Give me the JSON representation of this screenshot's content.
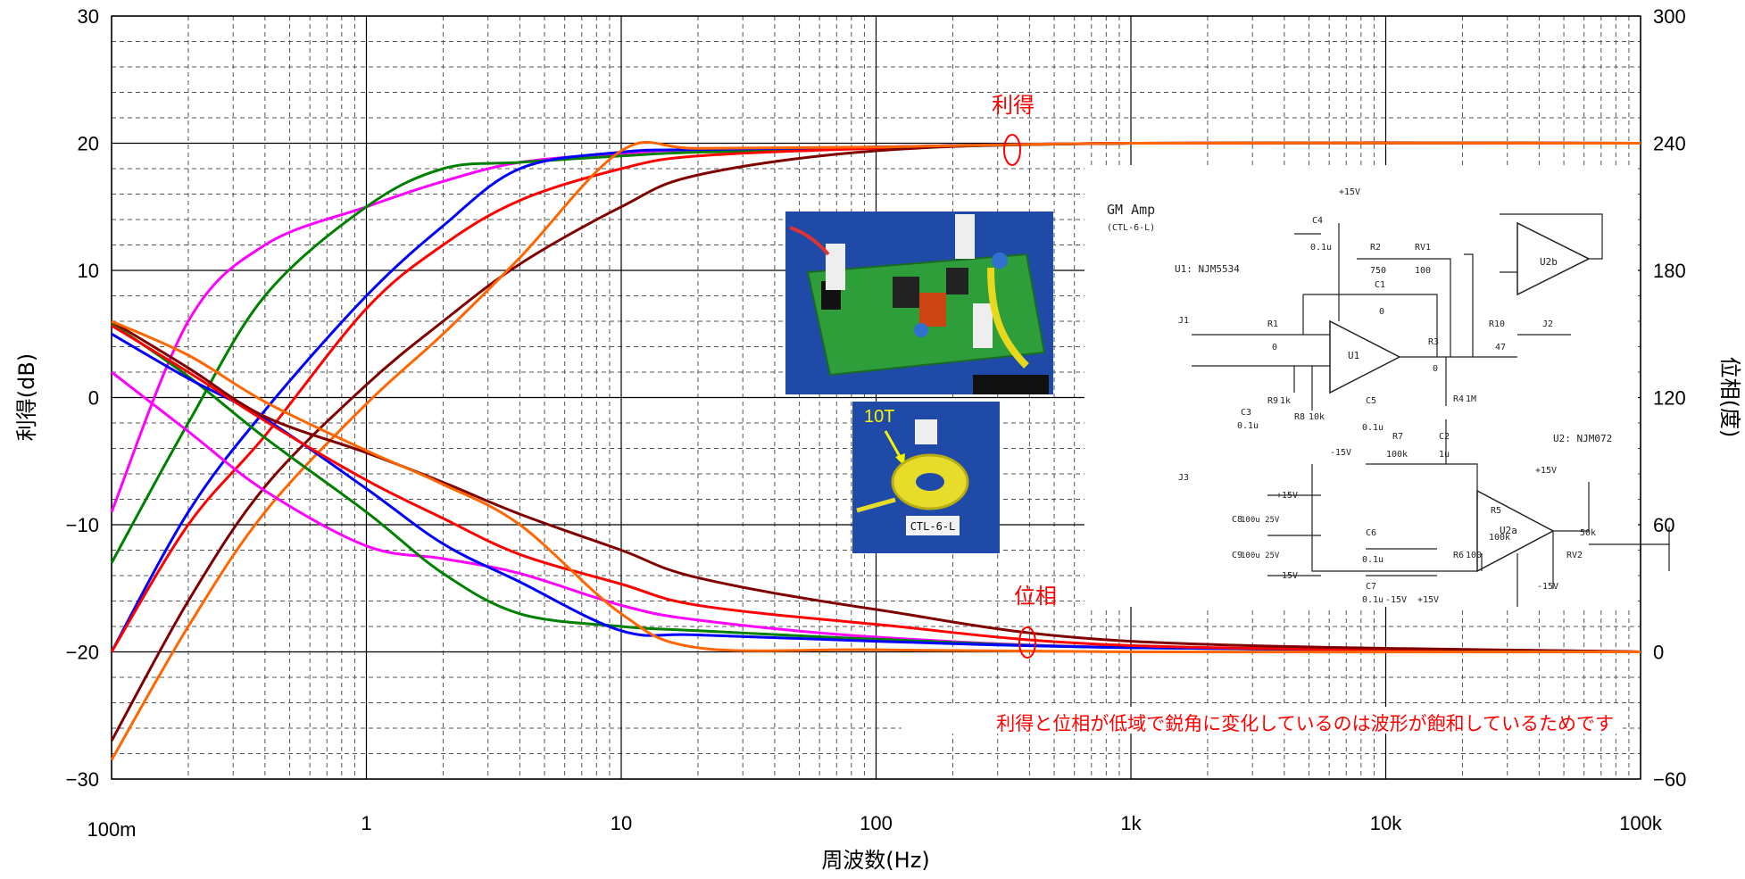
{
  "chart_data": {
    "type": "line",
    "xlabel": "周波数(Hz)",
    "ylabel_left": "利得(dB)",
    "ylabel_right": "位相(度)",
    "x_scale": "log",
    "xlim": [
      0.1,
      100000
    ],
    "ylim_left": [
      -30,
      30
    ],
    "ylim_right": [
      -60,
      300
    ],
    "grid": true,
    "x_tick_labels": [
      "100m",
      "1",
      "10",
      "100",
      "1k",
      "10k",
      "100k"
    ],
    "x_tick_values": [
      0.1,
      1,
      10,
      100,
      1000,
      10000,
      100000
    ],
    "y_left_ticks": [
      -30,
      -20,
      -10,
      0,
      10,
      20,
      30
    ],
    "y_right_ticks": [
      -60,
      0,
      60,
      120,
      180,
      240,
      300
    ],
    "annotations": {
      "gain": "利得",
      "phase": "位相",
      "note": "利得と位相が低域で鋭角に変化しているのは波形が飽和しているためです"
    },
    "x_points": [
      0.1,
      0.2,
      0.4,
      1,
      2,
      4,
      10,
      20,
      100,
      1000,
      100000
    ],
    "gain_series": [
      {
        "color": "#ff00ff",
        "values": [
          -9,
          6,
          12,
          15,
          17,
          18.5,
          19.2,
          19.5,
          19.7,
          20,
          20
        ]
      },
      {
        "color": "#008000",
        "values": [
          -13,
          -2,
          8,
          15,
          18,
          18.5,
          19,
          19.3,
          19.6,
          20,
          20
        ]
      },
      {
        "color": "#0000ff",
        "values": [
          -20,
          -9,
          -1,
          8,
          13.5,
          18,
          19.3,
          19.5,
          19.7,
          20,
          20
        ]
      },
      {
        "color": "#ff0000",
        "values": [
          -20,
          -10,
          -3,
          7,
          12,
          15.5,
          18,
          19,
          19.6,
          20,
          20
        ]
      },
      {
        "color": "#800000",
        "values": [
          -27,
          -16,
          -7,
          1,
          6,
          10.5,
          15,
          17.5,
          19.4,
          20,
          20
        ]
      },
      {
        "color": "#ff6600",
        "values": [
          -28.5,
          -18,
          -9,
          -0.5,
          5,
          11,
          19.4,
          19.6,
          19.7,
          20,
          20
        ]
      }
    ],
    "phase_series": [
      {
        "color": "#ff00ff",
        "values": [
          132,
          104,
          76,
          50,
          44,
          37,
          22,
          15,
          7,
          2,
          0
        ]
      },
      {
        "color": "#008000",
        "values": [
          155,
          130,
          101,
          66,
          37,
          18,
          12,
          10,
          6,
          2,
          0
        ]
      },
      {
        "color": "#0000ff",
        "values": [
          150,
          129,
          110,
          77,
          51,
          33,
          10,
          8,
          5,
          2,
          0
        ]
      },
      {
        "color": "#ff0000",
        "values": [
          154,
          132,
          109,
          81,
          63,
          46,
          32,
          22,
          13,
          3,
          0
        ]
      },
      {
        "color": "#800000",
        "values": [
          156,
          134,
          111,
          94,
          80,
          65,
          48,
          35,
          20,
          5,
          0
        ]
      },
      {
        "color": "#ff6600",
        "values": [
          156,
          140,
          118,
          95,
          79,
          60,
          18,
          2,
          1,
          0,
          0
        ]
      }
    ]
  },
  "insets": {
    "photo_label": "10T",
    "toroid_label": "CTL-6-L",
    "schematic": {
      "title": "GM Amp",
      "subtitle": "(CTL-6-L)",
      "u1": "U1: NJM5534",
      "u2": "U2: NJM072",
      "labels": {
        "p15": "+15V",
        "m15": "-15V",
        "c4": "C4",
        "c4v": "0.1u",
        "r2": "R2",
        "r2v": "750",
        "rv1": "RV1",
        "rv1v": "100",
        "c1": "C1",
        "c1v": "0",
        "r1": "R1",
        "r1v": "0",
        "r3": "R3",
        "r3v": "0",
        "r10": "R10",
        "r10v": "47",
        "j1": "J1",
        "j2": "J2",
        "j3": "J3",
        "u1n": "U1",
        "u2a": "U2a",
        "u2b": "U2b",
        "c3": "C3",
        "c3v": "0.1u",
        "r9": "R9",
        "r9v": "1k",
        "r8": "R8",
        "r8v": "10k",
        "c5": "C5",
        "c5v": "0.1u",
        "r4": "R4",
        "r4v": "1M",
        "r7": "R7",
        "r7v": "100k",
        "c2": "C2",
        "c2v": "1u",
        "c8": "C8",
        "c8v": "100u 25V",
        "c9": "C9",
        "c9v": "100u 25V",
        "c6": "C6",
        "c6v": "0.1u",
        "c7": "C7",
        "c7v": "0.1u",
        "r6": "R6",
        "r6v": "100",
        "r5": "R5",
        "r5v": "100k",
        "rv2": "RV2",
        "rv2v": "50k"
      }
    }
  }
}
